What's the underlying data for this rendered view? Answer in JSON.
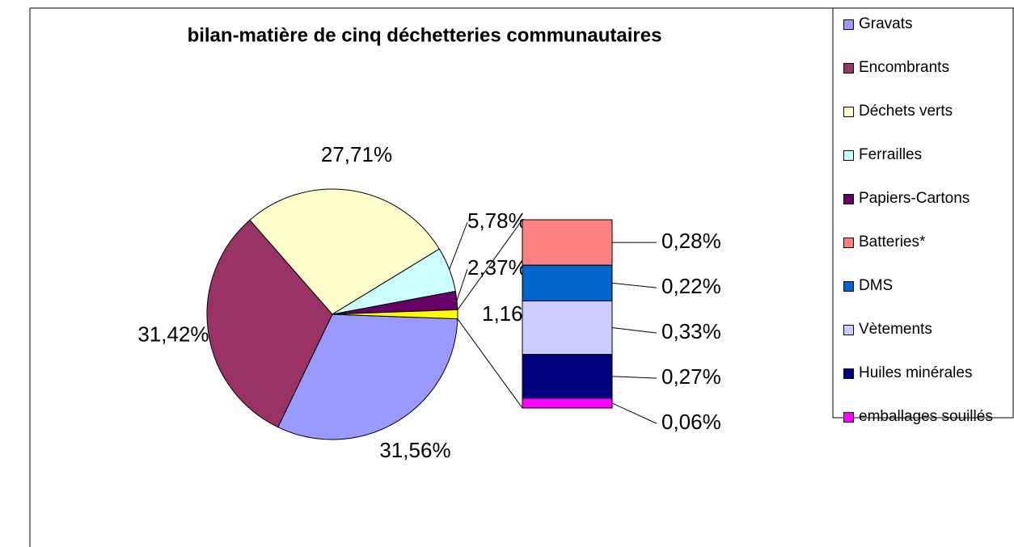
{
  "chart_data": {
    "type": "pie",
    "title": "bilan-matière de cinq déchetteries communautaires",
    "categories": [
      "Gravats",
      "Encombrants",
      "Déchets verts",
      "Ferrailles",
      "Papiers-Cartons",
      "Batteries*",
      "DMS",
      "Vètements",
      "Huiles minérales",
      "emballages souillés"
    ],
    "values": [
      31.56,
      31.42,
      27.71,
      5.78,
      2.37,
      0.28,
      0.22,
      0.33,
      0.27,
      0.06
    ],
    "value_labels": [
      "31,56%",
      "31,42%",
      "27,71%",
      "5,78%",
      "2,37%",
      "0,28%",
      "0,22%",
      "0,33%",
      "0,27%",
      "0,06%"
    ],
    "colors": [
      "#9999ff",
      "#993366",
      "#ffffcc",
      "#ccffff",
      "#660066",
      "#ff8080",
      "#0066cc",
      "#ccccff",
      "#000080",
      "#ff00ff"
    ],
    "secondary_count": 5,
    "other_value": 1.16,
    "other_label": "1,16%",
    "other_color": "#ffff00",
    "legend": "right"
  }
}
